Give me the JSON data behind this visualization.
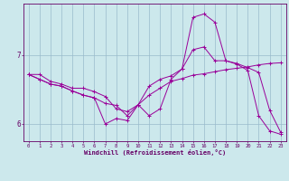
{
  "background_color": "#cce8ec",
  "line_color": "#990099",
  "grid_color": "#99bbcc",
  "axis_color": "#660066",
  "xlabel": "Windchill (Refroidissement éolien,°C)",
  "xlim": [
    -0.5,
    23.5
  ],
  "ylim": [
    5.75,
    7.75
  ],
  "yticks": [
    6,
    7
  ],
  "xticks": [
    0,
    1,
    2,
    3,
    4,
    5,
    6,
    7,
    8,
    9,
    10,
    11,
    12,
    13,
    14,
    15,
    16,
    17,
    18,
    19,
    20,
    21,
    22,
    23
  ],
  "series1_x": [
    0,
    1,
    2,
    3,
    4,
    5,
    6,
    7,
    8,
    9,
    10,
    11,
    12,
    13,
    14,
    15,
    16,
    17,
    18,
    19,
    20,
    21,
    22,
    23
  ],
  "series1_y": [
    6.72,
    6.72,
    6.62,
    6.58,
    6.52,
    6.52,
    6.47,
    6.4,
    6.22,
    6.18,
    6.28,
    6.42,
    6.52,
    6.62,
    6.66,
    6.71,
    6.73,
    6.76,
    6.79,
    6.81,
    6.83,
    6.86,
    6.88,
    6.89
  ],
  "series2_x": [
    0,
    1,
    2,
    3,
    4,
    5,
    6,
    7,
    8,
    9,
    10,
    11,
    12,
    13,
    14,
    15,
    16,
    17,
    18,
    19,
    20,
    21,
    22,
    23
  ],
  "series2_y": [
    6.72,
    6.65,
    6.58,
    6.55,
    6.48,
    6.42,
    6.38,
    6.0,
    6.08,
    6.05,
    6.28,
    6.12,
    6.22,
    6.65,
    6.8,
    7.55,
    7.6,
    7.48,
    6.92,
    6.88,
    6.82,
    6.75,
    6.2,
    5.88
  ],
  "series3_x": [
    0,
    1,
    2,
    3,
    4,
    5,
    6,
    7,
    8,
    9,
    10,
    11,
    12,
    13,
    14,
    15,
    16,
    17,
    18,
    19,
    20,
    21,
    22,
    23
  ],
  "series3_y": [
    6.72,
    6.65,
    6.58,
    6.55,
    6.48,
    6.42,
    6.38,
    6.3,
    6.27,
    6.12,
    6.28,
    6.55,
    6.65,
    6.7,
    6.8,
    7.08,
    7.12,
    6.92,
    6.92,
    6.87,
    6.78,
    6.12,
    5.9,
    5.85
  ]
}
